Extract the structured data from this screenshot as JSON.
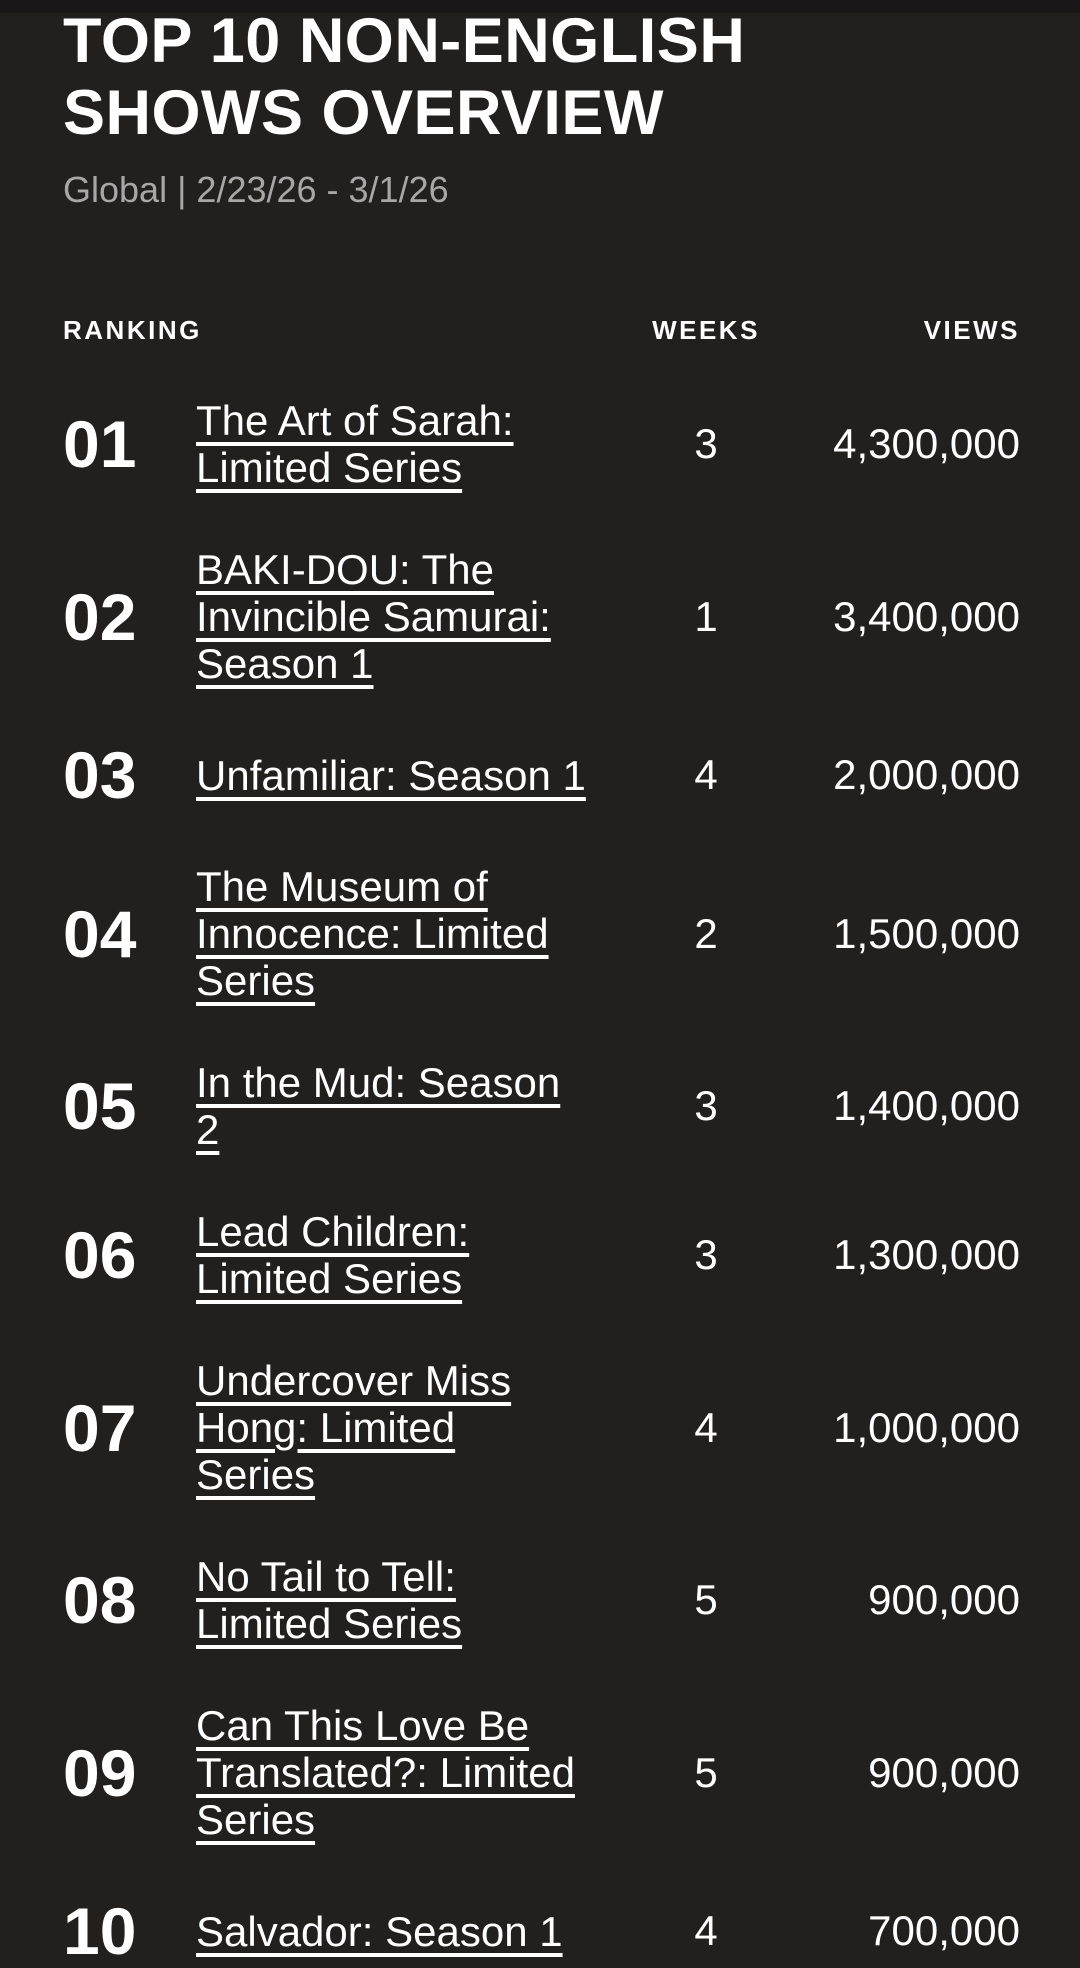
{
  "page": {
    "title_line1": "TOP 10 NON-ENGLISH",
    "title_line2": "SHOWS OVERVIEW",
    "subtitle": "Global | 2/23/26 - 3/1/26"
  },
  "colors": {
    "background": "#221f1f",
    "top_bar": "#191717",
    "text": "#ffffff",
    "muted_text": "#a8a6a6"
  },
  "table": {
    "columns": {
      "ranking": "RANKING",
      "weeks": "WEEKS",
      "views": "VIEWS"
    },
    "rows": [
      {
        "rank": "01",
        "title": "The Art of Sarah:\nLimited Series",
        "weeks": "3",
        "views": "4,300,000"
      },
      {
        "rank": "02",
        "title": "BAKI-DOU: The\nInvincible Samurai:\nSeason 1",
        "weeks": "1",
        "views": "3,400,000"
      },
      {
        "rank": "03",
        "title": "Unfamiliar: Season 1",
        "weeks": "4",
        "views": "2,000,000"
      },
      {
        "rank": "04",
        "title": "The Museum of\nInnocence: Limited\nSeries",
        "weeks": "2",
        "views": "1,500,000"
      },
      {
        "rank": "05",
        "title": "In the Mud: Season\n2",
        "weeks": "3",
        "views": "1,400,000"
      },
      {
        "rank": "06",
        "title": "Lead Children:\nLimited Series",
        "weeks": "3",
        "views": "1,300,000"
      },
      {
        "rank": "07",
        "title": "Undercover Miss\nHong: Limited\nSeries",
        "weeks": "4",
        "views": "1,000,000"
      },
      {
        "rank": "08",
        "title": "No Tail to Tell:\nLimited Series",
        "weeks": "5",
        "views": "900,000"
      },
      {
        "rank": "09",
        "title": "Can This Love Be\nTranslated?: Limited\nSeries",
        "weeks": "5",
        "views": "900,000"
      },
      {
        "rank": "10",
        "title": "Salvador: Season 1",
        "weeks": "4",
        "views": "700,000"
      }
    ]
  }
}
